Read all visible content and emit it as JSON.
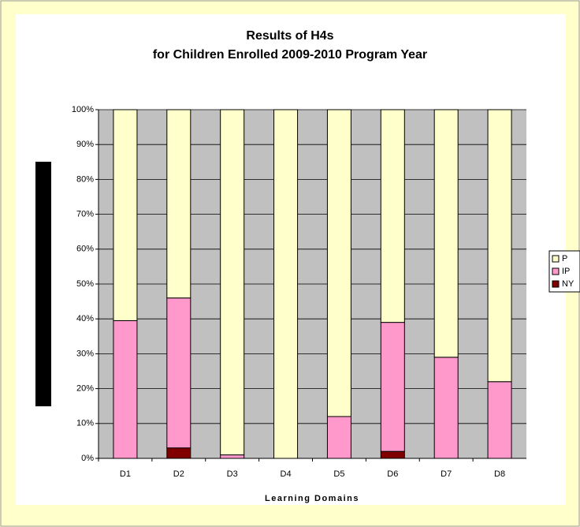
{
  "chart_data": {
    "type": "stacked_bar",
    "title": "Results of H4s",
    "subtitle": "for Children Enrolled 2009-2010 Program Year",
    "x_label": "Learning Domains",
    "categories": [
      "D1",
      "D2",
      "D3",
      "D4",
      "D5",
      "D6",
      "D7",
      "D8"
    ],
    "series": [
      {
        "name": "NY",
        "color": "#800000",
        "values": [
          0,
          3,
          0,
          0,
          0,
          2,
          0,
          0
        ]
      },
      {
        "name": "IP",
        "color": "#ff99cc",
        "values": [
          39.5,
          43,
          1,
          0,
          12,
          37,
          29,
          22
        ]
      },
      {
        "name": "P",
        "color": "#ffffcc",
        "values": [
          60.5,
          54,
          99,
          100,
          88,
          61,
          71,
          78
        ]
      }
    ],
    "ylim": [
      0,
      100
    ],
    "yticks": [
      {
        "value": 0,
        "label": "0%"
      },
      {
        "value": 10,
        "label": "10%"
      },
      {
        "value": 20,
        "label": "20%"
      },
      {
        "value": 30,
        "label": "30%"
      },
      {
        "value": 40,
        "label": "40%"
      },
      {
        "value": 50,
        "label": "50%"
      },
      {
        "value": 60,
        "label": "60%"
      },
      {
        "value": 70,
        "label": "70%"
      },
      {
        "value": 80,
        "label": "80%"
      },
      {
        "value": 90,
        "label": "90%"
      },
      {
        "value": 100,
        "label": "100%"
      }
    ],
    "grid": true,
    "legend": "right"
  }
}
